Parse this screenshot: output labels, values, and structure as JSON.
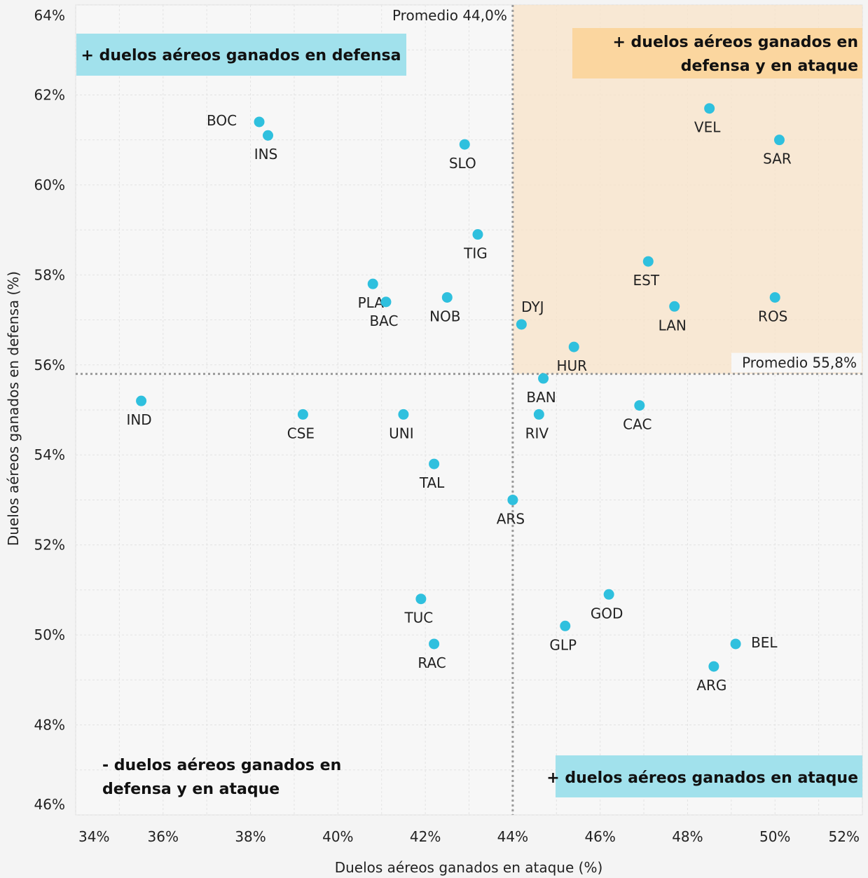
{
  "chart_data": {
    "type": "scatter",
    "xlabel": "Duelos aéreos ganados en ataque (%)",
    "ylabel": "Duelos aéreos ganados en defensa (%)",
    "xlim": [
      34,
      52
    ],
    "ylim": [
      46,
      64
    ],
    "xticks": [
      "34%",
      "36%",
      "38%",
      "40%",
      "42%",
      "44%",
      "46%",
      "48%",
      "50%",
      "52%"
    ],
    "yticks": [
      "46%",
      "48%",
      "50%",
      "52%",
      "54%",
      "56%",
      "58%",
      "60%",
      "62%",
      "64%"
    ],
    "grid": true,
    "point_color": "#2fc0de",
    "avg_x": {
      "value": 44.0,
      "label": "Promedio 44,0%"
    },
    "avg_y": {
      "value": 55.8,
      "label": "Promedio 55,8%"
    },
    "highlight_color": "#f8e3c8",
    "quadrant_labels": {
      "top_left": {
        "text": "+ duelos aéreos ganados en defensa",
        "color": "#a1e1ec"
      },
      "top_right": {
        "line1": "+ duelos aéreos ganados en",
        "line2": "defensa y en ataque",
        "color": "#fbd69f"
      },
      "bottom_left": {
        "line1": "- duelos aéreos ganados en",
        "line2": "defensa y en ataque"
      },
      "bottom_right": {
        "text": "+ duelos aéreos ganados en ataque",
        "color": "#a1e1ec"
      }
    },
    "points": [
      {
        "label": "BOC",
        "x": 38.2,
        "y": 61.4,
        "pos": "left"
      },
      {
        "label": "INS",
        "x": 38.4,
        "y": 61.1,
        "pos": "below"
      },
      {
        "label": "SLO",
        "x": 42.9,
        "y": 60.9,
        "pos": "below"
      },
      {
        "label": "VEL",
        "x": 48.5,
        "y": 61.7,
        "pos": "below"
      },
      {
        "label": "SAR",
        "x": 50.1,
        "y": 61.0,
        "pos": "below"
      },
      {
        "label": "TIG",
        "x": 43.2,
        "y": 58.9,
        "pos": "below"
      },
      {
        "label": "EST",
        "x": 47.1,
        "y": 58.3,
        "pos": "below"
      },
      {
        "label": "PLA",
        "x": 40.8,
        "y": 57.8,
        "pos": "below"
      },
      {
        "label": "BAC",
        "x": 41.1,
        "y": 57.4,
        "pos": "below"
      },
      {
        "label": "NOB",
        "x": 42.5,
        "y": 57.5,
        "pos": "below"
      },
      {
        "label": "ROS",
        "x": 50.0,
        "y": 57.5,
        "pos": "below"
      },
      {
        "label": "LAN",
        "x": 47.7,
        "y": 57.3,
        "pos": "below"
      },
      {
        "label": "DYJ",
        "x": 44.2,
        "y": 56.9,
        "pos": "above"
      },
      {
        "label": "HUR",
        "x": 45.4,
        "y": 56.4,
        "pos": "below"
      },
      {
        "label": "BAN",
        "x": 44.7,
        "y": 55.7,
        "pos": "below"
      },
      {
        "label": "IND",
        "x": 35.5,
        "y": 55.2,
        "pos": "below"
      },
      {
        "label": "CAC",
        "x": 46.9,
        "y": 55.1,
        "pos": "below"
      },
      {
        "label": "CSE",
        "x": 39.2,
        "y": 54.9,
        "pos": "below"
      },
      {
        "label": "UNI",
        "x": 41.5,
        "y": 54.9,
        "pos": "below"
      },
      {
        "label": "RIV",
        "x": 44.6,
        "y": 54.9,
        "pos": "below"
      },
      {
        "label": "TAL",
        "x": 42.2,
        "y": 53.8,
        "pos": "below"
      },
      {
        "label": "ARS",
        "x": 44.0,
        "y": 53.0,
        "pos": "below"
      },
      {
        "label": "GOD",
        "x": 46.2,
        "y": 50.9,
        "pos": "below"
      },
      {
        "label": "TUC",
        "x": 41.9,
        "y": 50.8,
        "pos": "below"
      },
      {
        "label": "GLP",
        "x": 45.2,
        "y": 50.2,
        "pos": "below"
      },
      {
        "label": "RAC",
        "x": 42.2,
        "y": 49.8,
        "pos": "below"
      },
      {
        "label": "BEL",
        "x": 49.1,
        "y": 49.8,
        "pos": "right"
      },
      {
        "label": "ARG",
        "x": 48.6,
        "y": 49.3,
        "pos": "below"
      }
    ]
  }
}
